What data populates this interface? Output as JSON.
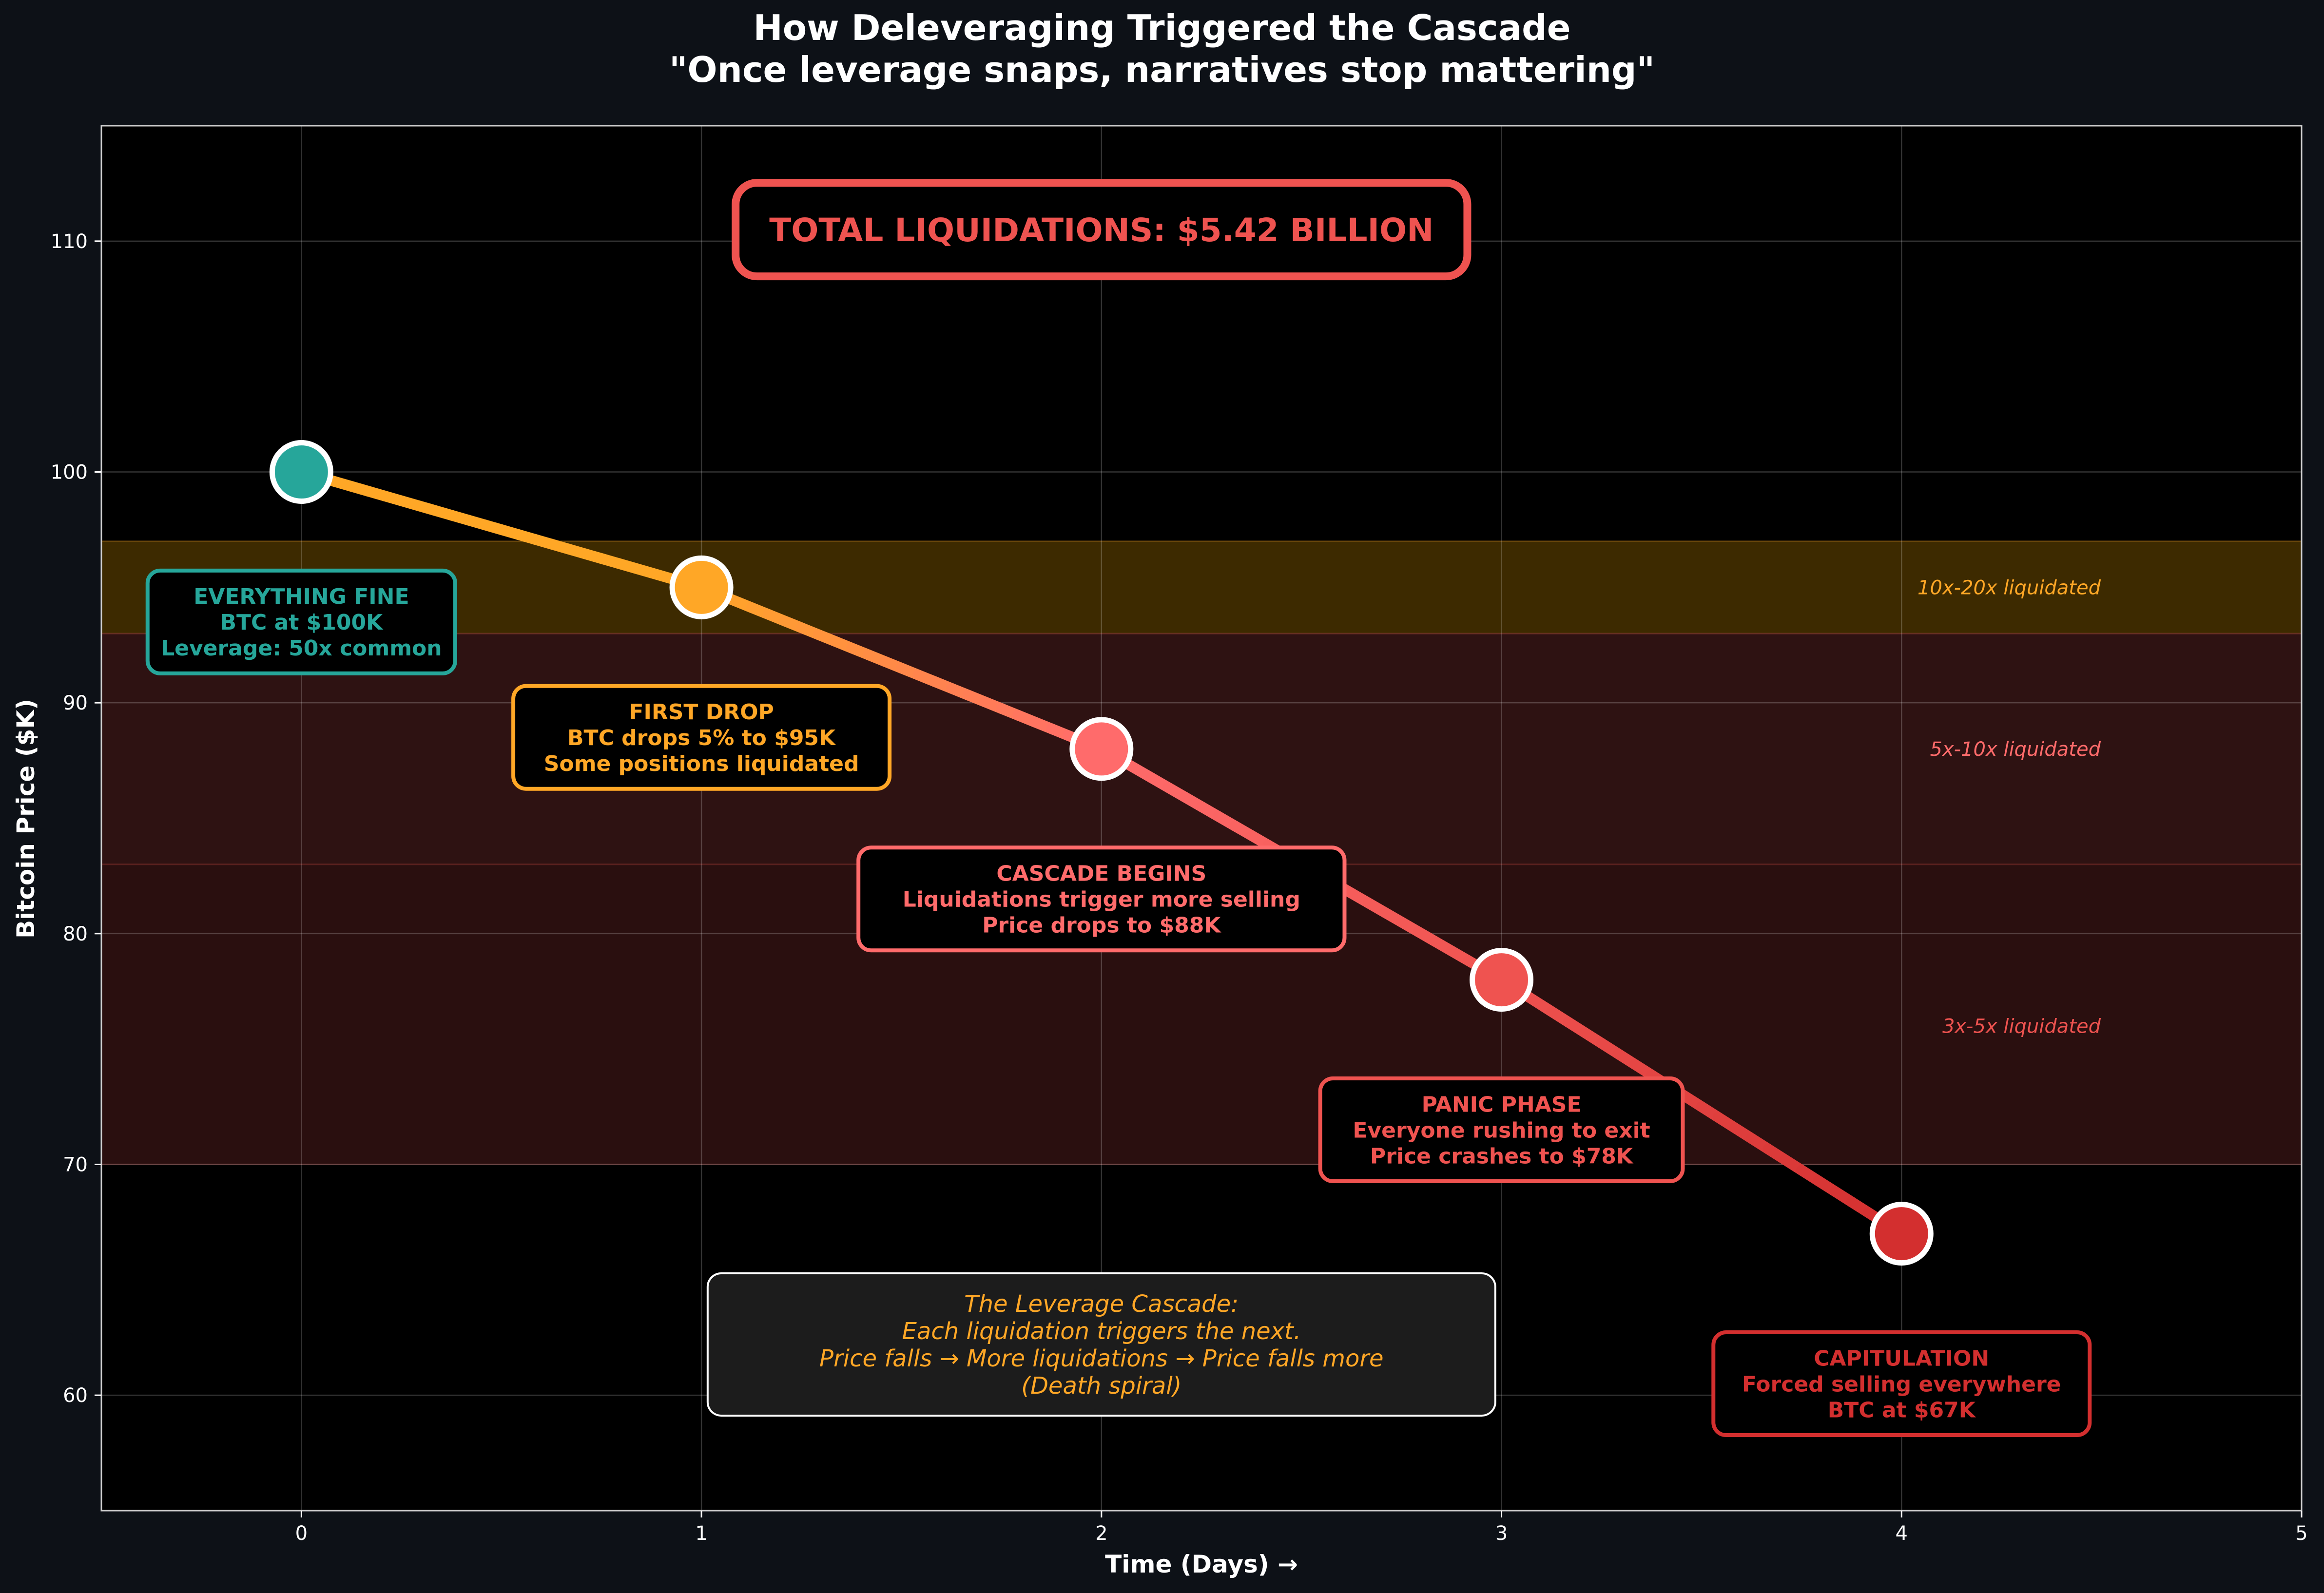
{
  "chart_data": {
    "type": "line",
    "title": "How Deleveraging Triggered the Cascade",
    "subtitle": "\"Once leverage snaps, narratives stop mattering\"",
    "xlabel": "Time (Days) →",
    "ylabel": "Bitcoin Price ($K)",
    "xlim": [
      -0.5,
      5
    ],
    "ylim": [
      55,
      115
    ],
    "xticks": [
      "0",
      "1",
      "2",
      "3",
      "4",
      "5"
    ],
    "yticks": [
      "60",
      "70",
      "80",
      "90",
      "100",
      "110"
    ],
    "grid": true,
    "x": [
      0,
      1,
      2,
      3,
      4
    ],
    "y": [
      100,
      95,
      88,
      78,
      67
    ],
    "point_colors": [
      "#26a69a",
      "#ffa726",
      "#ff6b6b",
      "#ef5350",
      "#d32f2f"
    ],
    "zones": [
      {
        "label": "10x-20x liquidated",
        "y_range": [
          93,
          97
        ],
        "fill": "#3d2a00",
        "text_color": "#ffa726",
        "label_y": 95
      },
      {
        "label": "5x-10x liquidated",
        "y_range": [
          83,
          93
        ],
        "fill": "#2e1212",
        "text_color": "#ff6b6b",
        "label_y": 88
      },
      {
        "label": "3x-5x liquidated",
        "y_range": [
          70,
          83
        ],
        "fill": "#2a0f0f",
        "text_color": "#ef5350",
        "label_y": 76
      }
    ],
    "annotations": [
      {
        "lines": [
          "EVERYTHING FINE",
          "BTC at $100K",
          "Leverage: 50x common"
        ],
        "x": 0,
        "y": 93.5,
        "color": "#26a69a"
      },
      {
        "lines": [
          "FIRST DROP",
          "BTC drops 5% to $95K",
          "Some positions liquidated"
        ],
        "x": 1,
        "y": 88.5,
        "color": "#ffa726"
      },
      {
        "lines": [
          "CASCADE BEGINS",
          "Liquidations trigger more selling",
          "Price drops to $88K"
        ],
        "x": 2,
        "y": 81.5,
        "color": "#ff6b6b"
      },
      {
        "lines": [
          "PANIC PHASE",
          "Everyone rushing to exit",
          "Price crashes to $78K"
        ],
        "x": 3,
        "y": 71.5,
        "color": "#ef5350"
      },
      {
        "lines": [
          "CAPITULATION",
          "Forced selling everywhere",
          "BTC at $67K"
        ],
        "x": 4,
        "y": 60.5,
        "color": "#d32f2f"
      }
    ],
    "total_box": {
      "text": "TOTAL LIQUIDATIONS: $5.42 BILLION",
      "x": 2,
      "y": 110.5,
      "color": "#ef5350"
    },
    "note_box": {
      "lines": [
        "The Leverage Cascade:",
        "Each liquidation triggers the next.",
        "Price falls → More liquidations → Price falls more",
        "(Death spiral)"
      ],
      "x": 2,
      "y": 62.2,
      "color": "#ffa726"
    }
  }
}
